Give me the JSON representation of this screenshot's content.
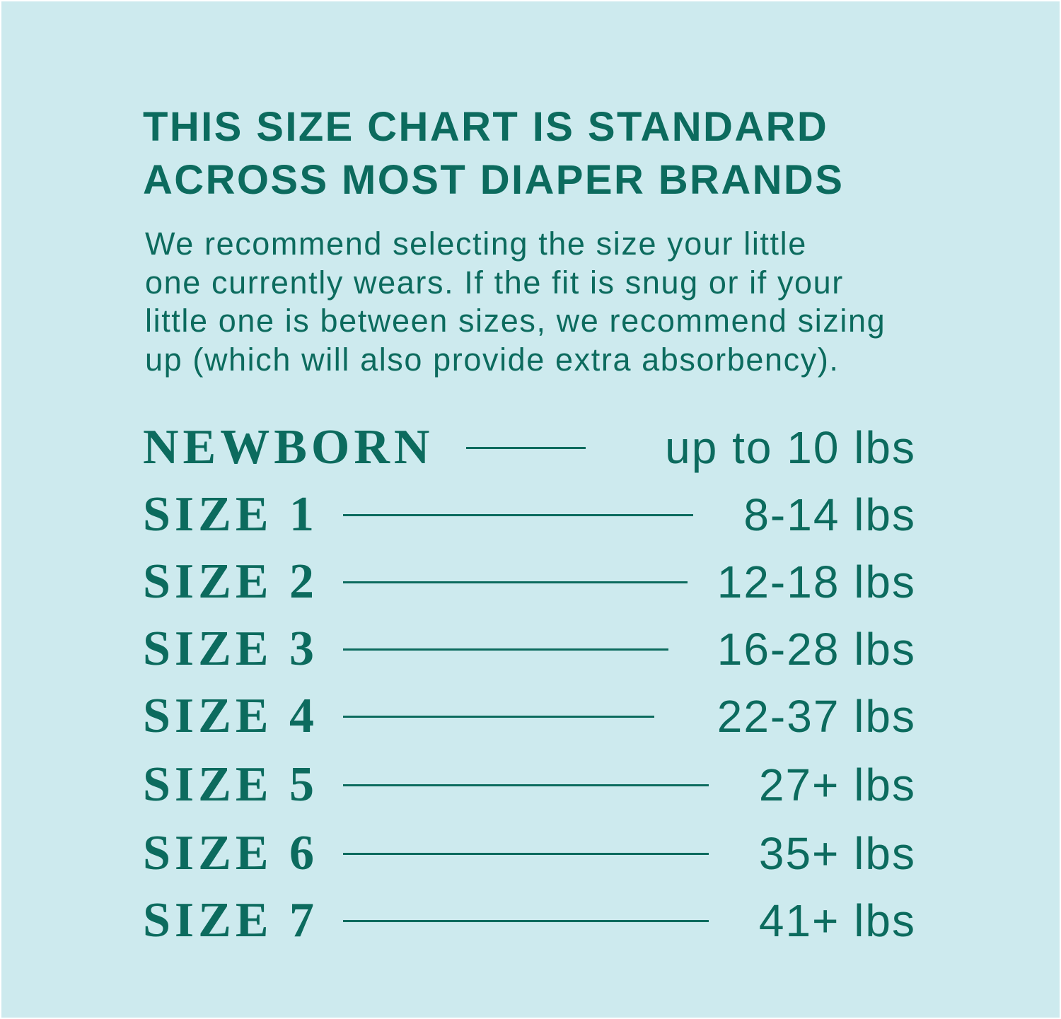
{
  "colors": {
    "background": "#cdeaee",
    "text": "#0c6b5e"
  },
  "title_lines": [
    "THIS SIZE CHART IS STANDARD",
    "ACROSS MOST DIAPER BRANDS"
  ],
  "intro_lines": [
    "We recommend selecting the size your little",
    "one currently wears. If the fit is snug or if your",
    "little one is between sizes, we recommend sizing",
    "up (which will also provide extra absorbency)."
  ],
  "sizes": [
    {
      "label": "NEWBORN",
      "weight": "up to 10 lbs"
    },
    {
      "label": "SIZE 1",
      "weight": "8-14 lbs"
    },
    {
      "label": "SIZE 2",
      "weight": "12-18 lbs"
    },
    {
      "label": "SIZE 3",
      "weight": "16-28 lbs"
    },
    {
      "label": "SIZE 4",
      "weight": "22-37 lbs"
    },
    {
      "label": "SIZE 5",
      "weight": "27+ lbs"
    },
    {
      "label": "SIZE 6",
      "weight": "35+ lbs"
    },
    {
      "label": "SIZE 7",
      "weight": "41+ lbs"
    }
  ]
}
